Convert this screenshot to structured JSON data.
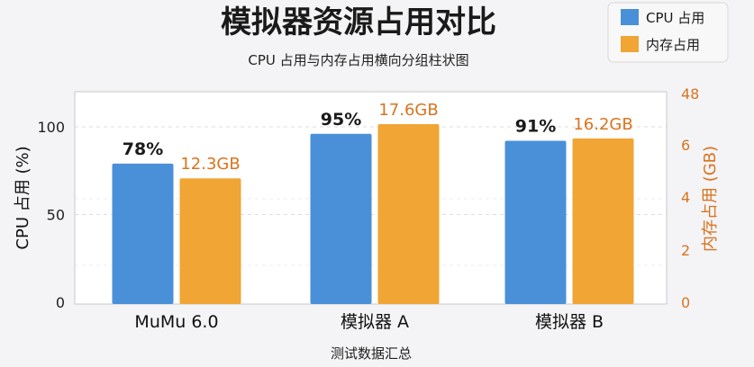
{
  "chart_data": {
    "type": "bar",
    "title": "模拟器资源占用对比",
    "subtitle": "CPU 占用与内存占用横向分组柱状图",
    "xlabel": "测试数据汇总",
    "ylabel_left": "CPU 占用 (%)",
    "ylabel_right": "内存占用 (GB)",
    "categories": [
      "MuMu 6.0",
      "模拟器 A",
      "模拟器 B"
    ],
    "left_ticks": [
      "0",
      "50",
      "100"
    ],
    "right_ticks": [
      "0",
      "2",
      "4",
      "6",
      "48"
    ],
    "series": [
      {
        "name": "CPU 占用",
        "axis": "left",
        "color": "#4a90d9",
        "values": [
          78,
          95,
          91
        ],
        "labels": [
          "78%",
          "95%",
          "91%"
        ]
      },
      {
        "name": "内存占用",
        "axis": "right",
        "color": "#f0a535",
        "values": [
          12.3,
          17.6,
          16.2
        ],
        "labels": [
          "12.3GB",
          "17.6GB",
          "16.2GB"
        ]
      }
    ],
    "grid": true,
    "legend": "top-right"
  }
}
